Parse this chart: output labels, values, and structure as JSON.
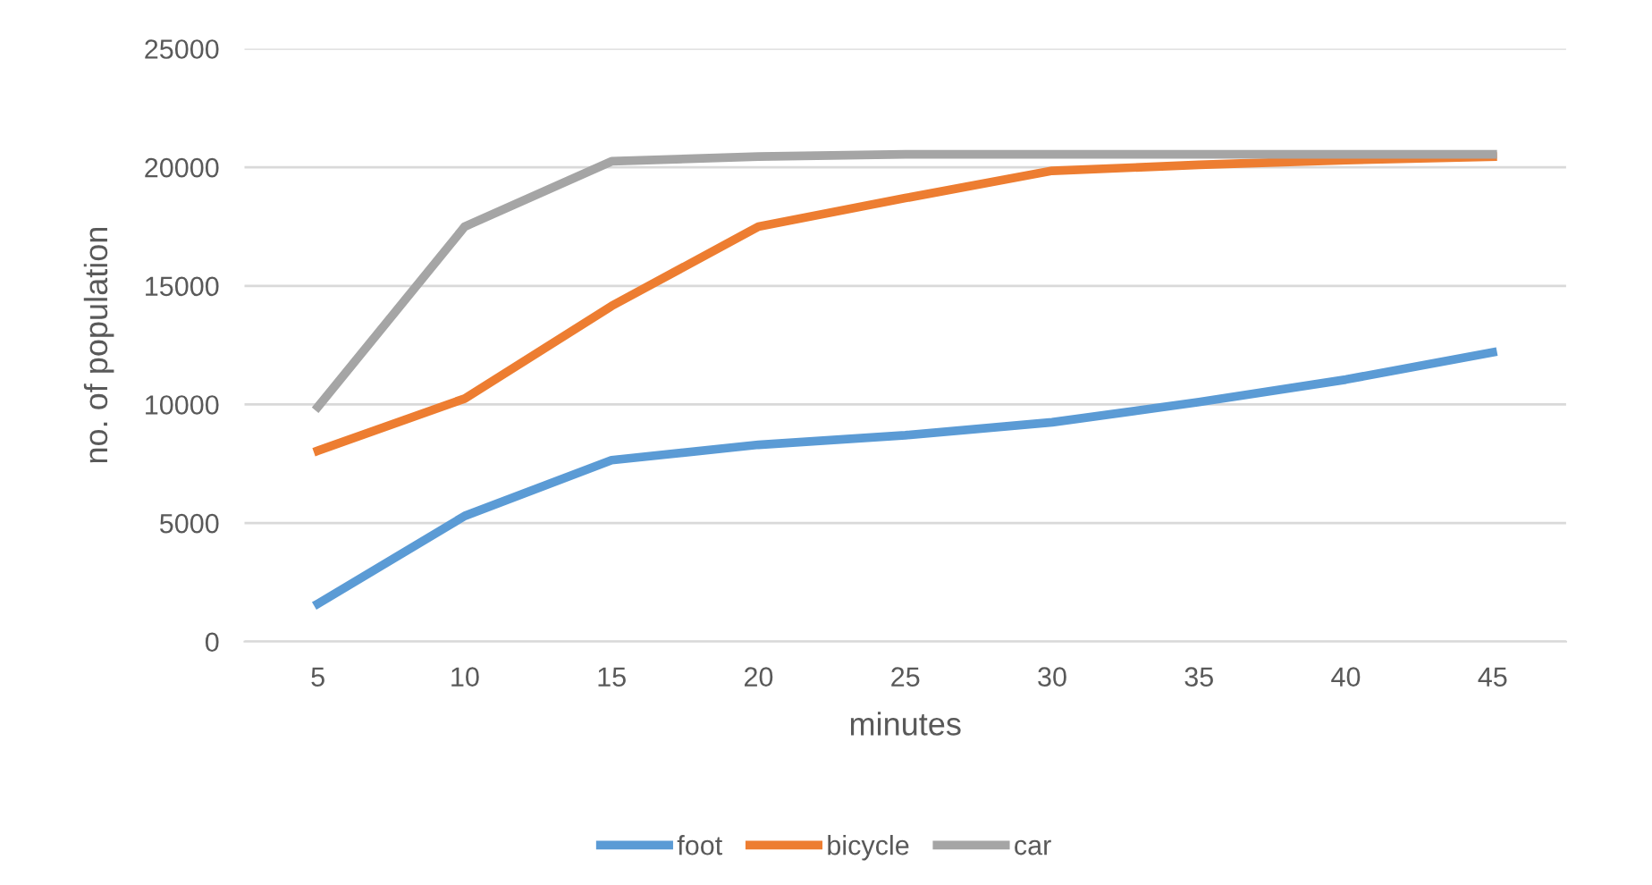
{
  "chart_data": {
    "type": "line",
    "xlabel": "minutes",
    "ylabel": "no. of population",
    "categories": [
      "5",
      "10",
      "15",
      "20",
      "25",
      "30",
      "35",
      "40",
      "45"
    ],
    "series": [
      {
        "name": "foot",
        "color": "#5b9bd5",
        "values": [
          1600,
          5300,
          7650,
          8300,
          8700,
          9250,
          10100,
          11050,
          12200
        ]
      },
      {
        "name": "bicycle",
        "color": "#ed7d31",
        "values": [
          8050,
          10250,
          14150,
          17500,
          18700,
          19850,
          20100,
          20300,
          20450
        ]
      },
      {
        "name": "car",
        "color": "#a5a5a5",
        "values": [
          9900,
          17500,
          20250,
          20450,
          20550,
          20550,
          20550,
          20550,
          20550
        ]
      }
    ],
    "ylim": [
      0,
      25000
    ],
    "yticks": [
      0,
      5000,
      10000,
      15000,
      20000,
      25000
    ],
    "grid": "y",
    "legend": "bottom",
    "marker": "none",
    "line_style": "solid"
  }
}
